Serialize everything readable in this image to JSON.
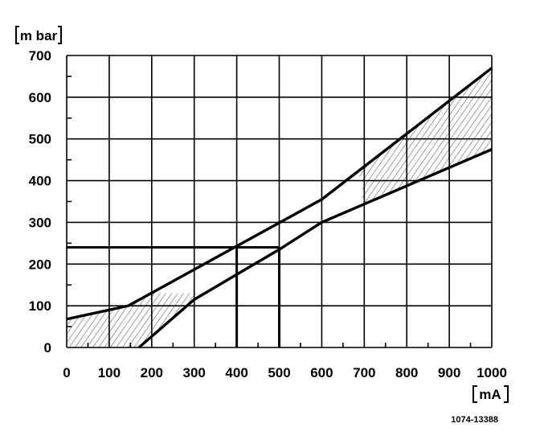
{
  "chart_data": {
    "type": "line",
    "xlabel": "mA",
    "ylabel": "m bar",
    "xlim": [
      0,
      1000
    ],
    "ylim": [
      0,
      700
    ],
    "x_ticks": [
      "0",
      "100",
      "200",
      "300",
      "400",
      "500",
      "600",
      "700",
      "800",
      "900",
      "1000"
    ],
    "y_ticks": [
      "0",
      "100",
      "200",
      "300",
      "400",
      "500",
      "600",
      "700"
    ],
    "grid": true,
    "series": [
      {
        "points": [
          [
            0,
            68
          ],
          [
            145,
            100
          ],
          [
            400,
            243
          ],
          [
            600,
            355
          ],
          [
            1000,
            670
          ]
        ]
      },
      {
        "points": [
          [
            170,
            0
          ],
          [
            300,
            115
          ],
          [
            500,
            235
          ],
          [
            600,
            300
          ],
          [
            1000,
            475
          ]
        ]
      }
    ],
    "reference_lines": {
      "y": 240,
      "x_start": 0,
      "x_end": 500,
      "verticals": [
        400,
        500
      ]
    },
    "footnote": "1074-13388"
  }
}
